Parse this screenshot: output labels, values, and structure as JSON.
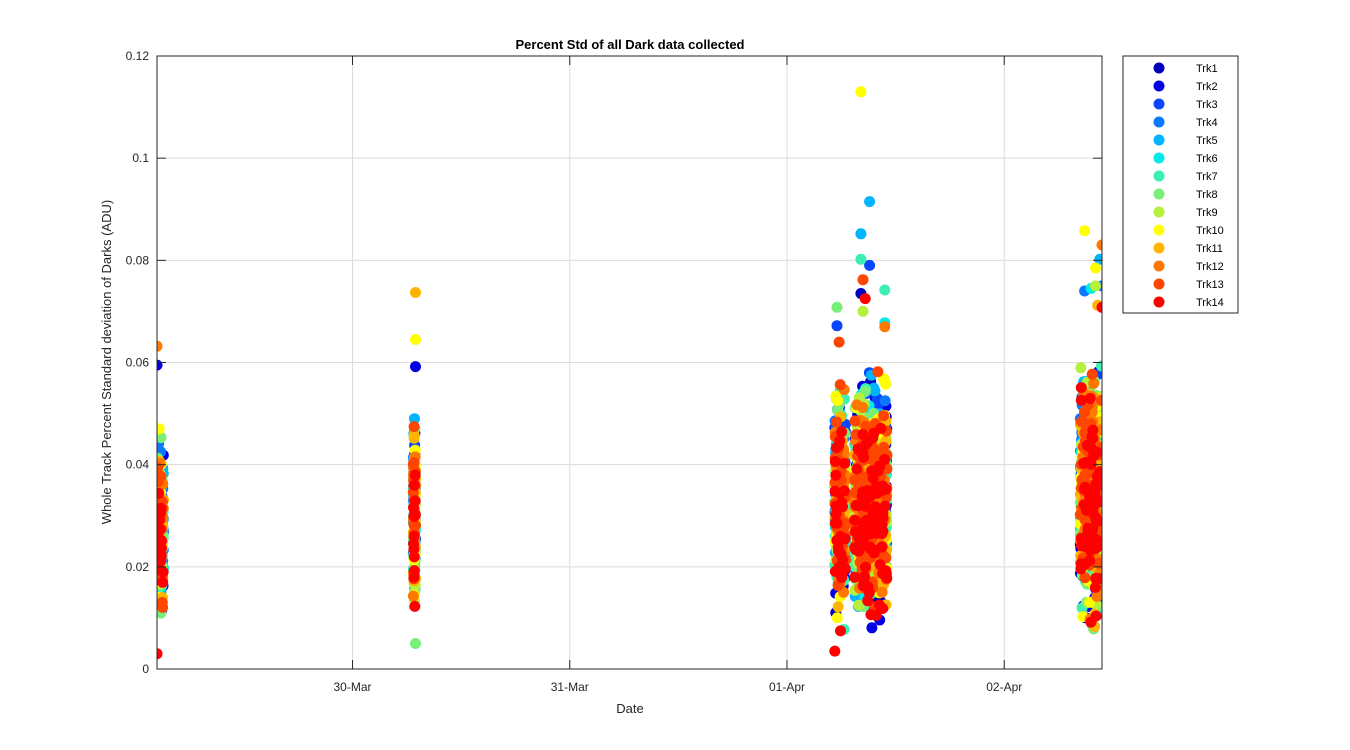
{
  "chart_data": {
    "type": "scatter",
    "title": "Percent Std of all Dark data collected",
    "xlabel": "Date",
    "ylabel": "Whole Track Percent Standard deviation of Darks (ADU)",
    "xlim": [
      29.1,
      33.45
    ],
    "ylim": [
      0,
      0.12
    ],
    "grid": true,
    "legend_position": "outside-top-right",
    "x_ticks": [
      {
        "value": 30,
        "label": "30-Mar"
      },
      {
        "value": 31,
        "label": "31-Mar"
      },
      {
        "value": 32,
        "label": "01-Apr"
      },
      {
        "value": 33,
        "label": "02-Apr"
      }
    ],
    "y_ticks": [
      {
        "value": 0,
        "label": "0"
      },
      {
        "value": 0.02,
        "label": "0.02"
      },
      {
        "value": 0.04,
        "label": "0.04"
      },
      {
        "value": 0.06,
        "label": "0.06"
      },
      {
        "value": 0.08,
        "label": "0.08"
      },
      {
        "value": 0.1,
        "label": "0.1"
      },
      {
        "value": 0.12,
        "label": "0.12"
      }
    ],
    "clusters": [
      {
        "x_start": 29.1,
        "x_end": 29.13,
        "y_min": 0.005,
        "y_max": 0.05
      },
      {
        "x_start": 30.28,
        "x_end": 30.29,
        "y_min": 0.006,
        "y_max": 0.052
      },
      {
        "x_start": 32.22,
        "x_end": 32.27,
        "y_min": 0.004,
        "y_max": 0.06
      },
      {
        "x_start": 32.31,
        "x_end": 32.46,
        "y_min": 0.004,
        "y_max": 0.062
      },
      {
        "x_start": 33.35,
        "x_end": 33.45,
        "y_min": 0.004,
        "y_max": 0.065
      }
    ],
    "series": [
      {
        "name": "Trk1",
        "color": "#0000be",
        "outliers": [
          {
            "x": 32.34,
            "y": 0.0735
          }
        ]
      },
      {
        "name": "Trk2",
        "color": "#0000e6",
        "outliers": [
          {
            "x": 29.1,
            "y": 0.0595
          },
          {
            "x": 30.29,
            "y": 0.0592
          }
        ]
      },
      {
        "name": "Trk3",
        "color": "#0a46ff",
        "outliers": [
          {
            "x": 32.38,
            "y": 0.079
          },
          {
            "x": 32.23,
            "y": 0.0672
          }
        ]
      },
      {
        "name": "Trk4",
        "color": "#0a78ff",
        "outliers": [
          {
            "x": 33.37,
            "y": 0.074
          },
          {
            "x": 33.45,
            "y": 0.075
          }
        ]
      },
      {
        "name": "Trk5",
        "color": "#00b4ff",
        "outliers": [
          {
            "x": 32.38,
            "y": 0.0915
          },
          {
            "x": 32.34,
            "y": 0.0852
          },
          {
            "x": 33.44,
            "y": 0.0802
          }
        ]
      },
      {
        "name": "Trk6",
        "color": "#00ebeb",
        "outliers": [
          {
            "x": 32.45,
            "y": 0.0678
          },
          {
            "x": 33.4,
            "y": 0.0745
          }
        ]
      },
      {
        "name": "Trk7",
        "color": "#3cf0b4",
        "outliers": [
          {
            "x": 32.45,
            "y": 0.0742
          },
          {
            "x": 32.34,
            "y": 0.0802
          }
        ]
      },
      {
        "name": "Trk8",
        "color": "#78f078",
        "outliers": [
          {
            "x": 32.23,
            "y": 0.0708
          },
          {
            "x": 30.29,
            "y": 0.005
          }
        ]
      },
      {
        "name": "Trk9",
        "color": "#b4f03c",
        "outliers": [
          {
            "x": 33.42,
            "y": 0.075
          },
          {
            "x": 32.35,
            "y": 0.07
          }
        ]
      },
      {
        "name": "Trk10",
        "color": "#ffff00",
        "outliers": [
          {
            "x": 32.34,
            "y": 0.113
          },
          {
            "x": 33.37,
            "y": 0.0858
          },
          {
            "x": 30.29,
            "y": 0.0645
          },
          {
            "x": 33.42,
            "y": 0.0785
          }
        ]
      },
      {
        "name": "Trk11",
        "color": "#ffb400",
        "outliers": [
          {
            "x": 30.29,
            "y": 0.0737
          },
          {
            "x": 33.43,
            "y": 0.0712
          }
        ]
      },
      {
        "name": "Trk12",
        "color": "#ff7800",
        "outliers": [
          {
            "x": 33.45,
            "y": 0.083
          },
          {
            "x": 29.1,
            "y": 0.0632
          },
          {
            "x": 32.45,
            "y": 0.067
          }
        ]
      },
      {
        "name": "Trk13",
        "color": "#ff4600",
        "outliers": [
          {
            "x": 32.35,
            "y": 0.0762
          },
          {
            "x": 32.24,
            "y": 0.064
          }
        ]
      },
      {
        "name": "Trk14",
        "color": "#ff0000",
        "outliers": [
          {
            "x": 29.1,
            "y": 0.003
          },
          {
            "x": 33.45,
            "y": 0.0708
          },
          {
            "x": 32.36,
            "y": 0.0725
          },
          {
            "x": 32.22,
            "y": 0.0035
          }
        ]
      }
    ]
  }
}
